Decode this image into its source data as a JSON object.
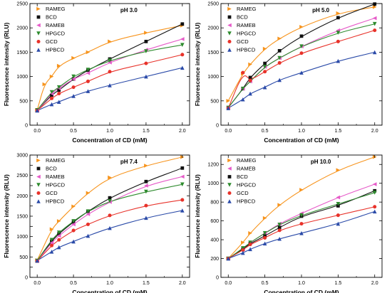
{
  "chart_data": [
    {
      "type": "scatter",
      "title": "pH 3.0",
      "xlabel": "Concentration of CD (mM)",
      "ylabel": "Fluorescence intensity (RLU)",
      "xlim": [
        -0.1,
        2.1
      ],
      "ylim": [
        0,
        2500
      ],
      "xticks": [
        "0.0",
        "0.5",
        "1.0",
        "1.5",
        "2.0"
      ],
      "yticks": [
        "0",
        "500",
        "1000",
        "1500",
        "2000",
        "2500"
      ],
      "legend_position": "top-left",
      "series": [
        {
          "name": "RAMEG",
          "marker": "triangle-right",
          "color": "#f7941d",
          "x": [
            0,
            0.1,
            0.2,
            0.3,
            0.5,
            0.7,
            1.0,
            1.5,
            2.0
          ],
          "y": [
            310,
            840,
            1000,
            1220,
            1380,
            1500,
            1720,
            1900,
            2050
          ]
        },
        {
          "name": "BCD",
          "marker": "square",
          "color": "#111111",
          "x": [
            0,
            0.2,
            0.3,
            0.5,
            0.7,
            1.0,
            1.5,
            2.0
          ],
          "y": [
            300,
            620,
            720,
            950,
            1130,
            1360,
            1720,
            2080
          ]
        },
        {
          "name": "RAMEB",
          "marker": "triangle-left",
          "color": "#e65ac8",
          "x": [
            0,
            0.2,
            0.3,
            0.5,
            0.7,
            1.0,
            1.5,
            2.0
          ],
          "y": [
            300,
            650,
            760,
            950,
            1070,
            1290,
            1550,
            1770
          ]
        },
        {
          "name": "HPGCD",
          "marker": "triangle-down",
          "color": "#2e8b2e",
          "x": [
            0,
            0.2,
            0.3,
            0.5,
            0.7,
            1.0,
            1.5,
            2.0
          ],
          "y": [
            310,
            680,
            780,
            1000,
            1140,
            1330,
            1520,
            1650
          ]
        },
        {
          "name": "GCD",
          "marker": "circle",
          "color": "#e8322a",
          "x": [
            0,
            0.2,
            0.3,
            0.5,
            0.7,
            1.0,
            1.5,
            2.0
          ],
          "y": [
            300,
            550,
            650,
            780,
            900,
            1100,
            1270,
            1450
          ]
        },
        {
          "name": "HPBCD",
          "marker": "triangle-up",
          "color": "#2a4aa8",
          "x": [
            0,
            0.2,
            0.3,
            0.5,
            0.7,
            1.0,
            1.5,
            2.0
          ],
          "y": [
            300,
            430,
            480,
            600,
            700,
            820,
            1000,
            1180
          ]
        }
      ]
    },
    {
      "type": "scatter",
      "title": "pH 5.0",
      "xlabel": "Concentration of CD (mM)",
      "ylabel": "",
      "xlim": [
        -0.1,
        2.1
      ],
      "ylim": [
        0,
        2500
      ],
      "xticks": [
        "0.0",
        "0.5",
        "1.0",
        "1.5",
        "2.0"
      ],
      "yticks": [
        "0",
        "500",
        "1000",
        "1500",
        "2000",
        "2500"
      ],
      "legend_position": "top-left",
      "series": [
        {
          "name": "RAMEG",
          "marker": "triangle-right",
          "color": "#f7941d",
          "x": [
            0,
            0.2,
            0.3,
            0.5,
            0.7,
            1.0,
            1.5,
            2.0
          ],
          "y": [
            500,
            1060,
            1250,
            1570,
            1780,
            2020,
            2300,
            2430
          ]
        },
        {
          "name": "BCD",
          "marker": "square",
          "color": "#111111",
          "x": [
            0,
            0.2,
            0.3,
            0.5,
            0.7,
            1.0,
            1.5,
            2.0
          ],
          "y": [
            360,
            750,
            980,
            1270,
            1530,
            1830,
            2210,
            2490
          ]
        },
        {
          "name": "RAMEB",
          "marker": "triangle-left",
          "color": "#e65ac8",
          "x": [
            0,
            0.2,
            0.3,
            0.5,
            0.7,
            1.0,
            1.5,
            2.0
          ],
          "y": [
            360,
            750,
            900,
            1200,
            1380,
            1620,
            1950,
            2200
          ]
        },
        {
          "name": "HPGCD",
          "marker": "triangle-down",
          "color": "#2e8b2e",
          "x": [
            0,
            0.2,
            0.3,
            0.5,
            0.7,
            1.0,
            1.5,
            2.0
          ],
          "y": [
            360,
            750,
            900,
            1200,
            1380,
            1620,
            1900,
            2080
          ]
        },
        {
          "name": "GCD",
          "marker": "circle",
          "color": "#e8322a",
          "x": [
            0,
            0.2,
            0.3,
            0.5,
            0.7,
            1.0,
            1.5,
            2.0
          ],
          "y": [
            350,
            1080,
            920,
            1100,
            1280,
            1480,
            1720,
            1950
          ]
        },
        {
          "name": "HPBCD",
          "marker": "triangle-up",
          "color": "#2a4aa8",
          "x": [
            0,
            0.2,
            0.3,
            0.5,
            0.7,
            1.0,
            1.5,
            2.0
          ],
          "y": [
            350,
            530,
            650,
            780,
            930,
            1080,
            1320,
            1500
          ]
        }
      ]
    },
    {
      "type": "scatter",
      "title": "pH 7.4",
      "xlabel": "Concentration of CD (mM)",
      "ylabel": "Fluorescence intensity (RLU)",
      "xlim": [
        -0.1,
        2.1
      ],
      "ylim": [
        0,
        3000
      ],
      "xticks": [
        "0.0",
        "0.5",
        "1.0",
        "1.5",
        "2.0"
      ],
      "yticks": [
        "0",
        "250",
        "500",
        "750",
        "1000",
        "1250",
        "1500",
        "1750",
        "2000",
        "2250",
        "2500",
        "2750",
        "3000"
      ],
      "yticks_labeled": [
        "0",
        "500",
        "1000",
        "1500",
        "2000",
        "2500",
        "3000"
      ],
      "legend_position": "top-left",
      "series": [
        {
          "name": "RAMEG",
          "marker": "triangle-right",
          "color": "#f7941d",
          "x": [
            0,
            0.2,
            0.3,
            0.5,
            0.7,
            1.0,
            1.5,
            2.0
          ],
          "y": [
            420,
            1180,
            1380,
            1740,
            2070,
            2450,
            2740,
            2950
          ]
        },
        {
          "name": "BCD",
          "marker": "square",
          "color": "#111111",
          "x": [
            0,
            0.2,
            0.3,
            0.5,
            0.7,
            1.0,
            1.5,
            2.0
          ],
          "y": [
            400,
            890,
            1070,
            1360,
            1620,
            1950,
            2350,
            2680
          ]
        },
        {
          "name": "RAMEB",
          "marker": "triangle-left",
          "color": "#e65ac8",
          "x": [
            0,
            0.2,
            0.3,
            0.5,
            0.7,
            1.0,
            1.5,
            2.0
          ],
          "y": [
            400,
            850,
            1020,
            1300,
            1550,
            1850,
            2250,
            2470
          ]
        },
        {
          "name": "HPGCD",
          "marker": "triangle-down",
          "color": "#2e8b2e",
          "x": [
            0,
            0.2,
            0.3,
            0.5,
            0.7,
            1.0,
            1.5,
            2.0
          ],
          "y": [
            410,
            920,
            1100,
            1380,
            1620,
            1870,
            2100,
            2280
          ]
        },
        {
          "name": "GCD",
          "marker": "circle",
          "color": "#e8322a",
          "x": [
            0,
            0.2,
            0.3,
            0.5,
            0.7,
            1.0,
            1.5,
            2.0
          ],
          "y": [
            400,
            780,
            920,
            1150,
            1300,
            1520,
            1760,
            1900
          ]
        },
        {
          "name": "HPBCD",
          "marker": "triangle-up",
          "color": "#2a4aa8",
          "x": [
            0,
            0.2,
            0.3,
            0.5,
            0.7,
            1.0,
            1.5,
            2.0
          ],
          "y": [
            410,
            630,
            740,
            880,
            1020,
            1210,
            1460,
            1640
          ]
        }
      ]
    },
    {
      "type": "scatter",
      "title": "pH 10.0",
      "xlabel": "Concentration of CD (mM)",
      "ylabel": "",
      "xlim": [
        -0.1,
        2.1
      ],
      "ylim": [
        0,
        1300
      ],
      "xticks": [
        "0.0",
        "0.5",
        "1.0",
        "1.5",
        "2.0"
      ],
      "yticks": [
        "0",
        "200",
        "400",
        "600",
        "800",
        "1000",
        "1200"
      ],
      "legend_position": "top-left",
      "series": [
        {
          "name": "RAMEG",
          "marker": "triangle-right",
          "color": "#f7941d",
          "x": [
            0,
            0.2,
            0.3,
            0.5,
            0.7,
            1.0,
            1.5,
            2.0
          ],
          "y": [
            200,
            370,
            470,
            630,
            770,
            930,
            1140,
            1280
          ]
        },
        {
          "name": "RAMEB",
          "marker": "triangle-left",
          "color": "#e65ac8",
          "x": [
            0,
            0.2,
            0.3,
            0.5,
            0.7,
            1.0,
            1.5,
            2.0
          ],
          "y": [
            200,
            300,
            370,
            470,
            570,
            680,
            850,
            990
          ]
        },
        {
          "name": "BCD",
          "marker": "square",
          "color": "#111111",
          "x": [
            0,
            0.2,
            0.3,
            0.5,
            0.7,
            1.0,
            1.5,
            2.0
          ],
          "y": [
            200,
            300,
            360,
            440,
            530,
            650,
            760,
            920
          ]
        },
        {
          "name": "HPGCD",
          "marker": "triangle-down",
          "color": "#2e8b2e",
          "x": [
            0,
            0.2,
            0.3,
            0.5,
            0.7,
            1.0,
            1.5,
            2.0
          ],
          "y": [
            200,
            310,
            370,
            470,
            560,
            660,
            780,
            900
          ]
        },
        {
          "name": "GCD",
          "marker": "circle",
          "color": "#e8322a",
          "x": [
            0,
            0.2,
            0.3,
            0.5,
            0.7,
            1.0,
            1.5,
            2.0
          ],
          "y": [
            200,
            290,
            350,
            420,
            500,
            570,
            660,
            750
          ]
        },
        {
          "name": "HPBCD",
          "marker": "triangle-up",
          "color": "#2a4aa8",
          "x": [
            0,
            0.2,
            0.3,
            0.5,
            0.7,
            1.0,
            1.5,
            2.0
          ],
          "y": [
            200,
            260,
            300,
            360,
            410,
            470,
            570,
            700
          ]
        }
      ]
    }
  ]
}
